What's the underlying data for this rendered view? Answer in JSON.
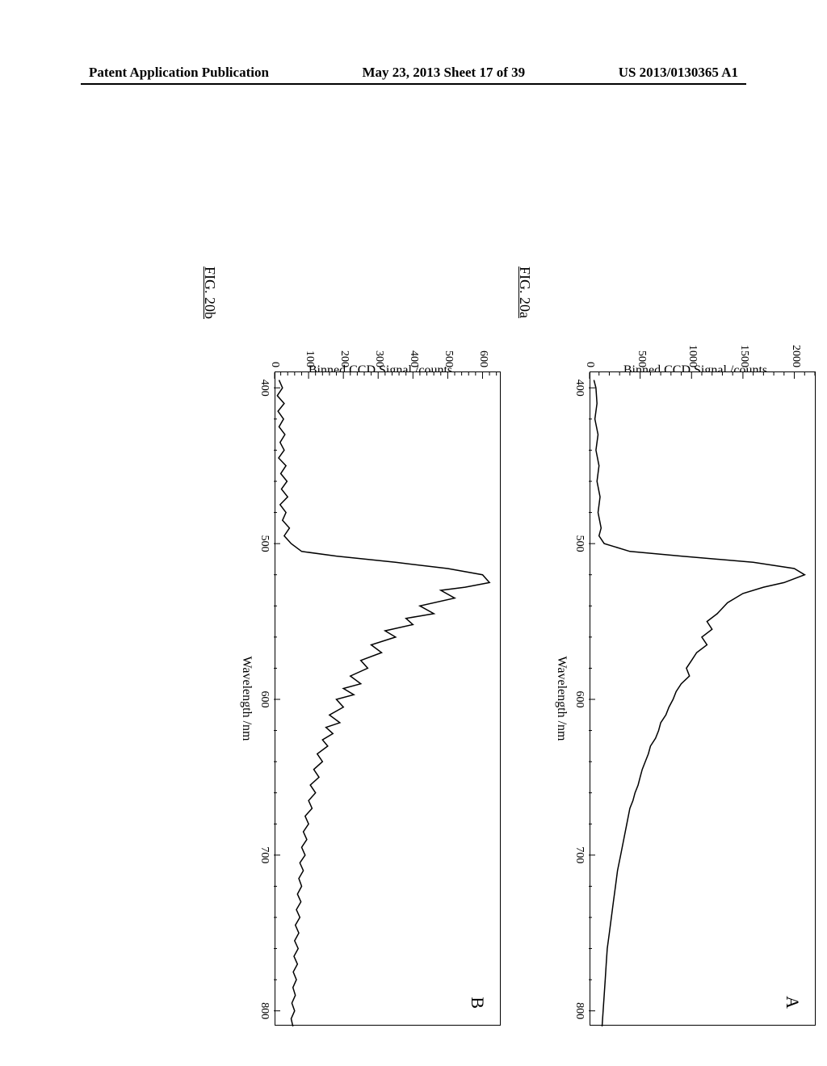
{
  "header": {
    "left": "Patent Application Publication",
    "center": "May 23, 2013  Sheet 17 of 39",
    "right": "US 2013/0130365 A1"
  },
  "chartA": {
    "type": "line",
    "panel_label": "A",
    "fig_label": "FIG.  20a",
    "x_axis_label": "Wavelength /nm",
    "y_axis_label": "Binned CCD Signal /counts",
    "xlim": [
      390,
      810
    ],
    "ylim": [
      0,
      2200
    ],
    "x_ticks": [
      400,
      500,
      600,
      700,
      800
    ],
    "y_ticks": [
      0,
      500,
      1000,
      1500,
      2000
    ],
    "line_color": "#000000",
    "background_color": "#ffffff",
    "peak_wavelength": 520,
    "peak_value": 2100,
    "data_points": [
      [
        395,
        50
      ],
      [
        400,
        70
      ],
      [
        410,
        80
      ],
      [
        420,
        60
      ],
      [
        430,
        90
      ],
      [
        440,
        70
      ],
      [
        450,
        100
      ],
      [
        460,
        80
      ],
      [
        470,
        110
      ],
      [
        480,
        90
      ],
      [
        490,
        120
      ],
      [
        495,
        100
      ],
      [
        500,
        150
      ],
      [
        505,
        400
      ],
      [
        508,
        900
      ],
      [
        512,
        1600
      ],
      [
        516,
        2000
      ],
      [
        520,
        2100
      ],
      [
        525,
        1900
      ],
      [
        528,
        1700
      ],
      [
        532,
        1500
      ],
      [
        538,
        1350
      ],
      [
        545,
        1250
      ],
      [
        550,
        1150
      ],
      [
        555,
        1200
      ],
      [
        560,
        1100
      ],
      [
        565,
        1150
      ],
      [
        570,
        1050
      ],
      [
        575,
        1000
      ],
      [
        580,
        950
      ],
      [
        585,
        980
      ],
      [
        590,
        900
      ],
      [
        595,
        850
      ],
      [
        600,
        820
      ],
      [
        605,
        780
      ],
      [
        610,
        750
      ],
      [
        615,
        700
      ],
      [
        620,
        680
      ],
      [
        625,
        650
      ],
      [
        630,
        600
      ],
      [
        635,
        580
      ],
      [
        640,
        550
      ],
      [
        645,
        520
      ],
      [
        650,
        500
      ],
      [
        655,
        480
      ],
      [
        660,
        450
      ],
      [
        665,
        430
      ],
      [
        670,
        400
      ],
      [
        680,
        370
      ],
      [
        690,
        340
      ],
      [
        700,
        310
      ],
      [
        710,
        280
      ],
      [
        720,
        260
      ],
      [
        730,
        240
      ],
      [
        740,
        220
      ],
      [
        750,
        200
      ],
      [
        760,
        180
      ],
      [
        770,
        170
      ],
      [
        780,
        160
      ],
      [
        790,
        150
      ],
      [
        800,
        140
      ],
      [
        810,
        130
      ]
    ]
  },
  "chartB": {
    "type": "line",
    "panel_label": "B",
    "fig_label": "FIG.  20b",
    "x_axis_label": "Wavelength /nm",
    "y_axis_label": "Binned CCD Signal /counts",
    "xlim": [
      390,
      810
    ],
    "ylim": [
      0,
      650
    ],
    "x_ticks": [
      400,
      500,
      600,
      700,
      800
    ],
    "y_ticks": [
      0,
      100,
      200,
      300,
      400,
      500,
      600
    ],
    "line_color": "#000000",
    "background_color": "#ffffff",
    "peak_wavelength": 525,
    "peak_value": 620,
    "data_points": [
      [
        395,
        15
      ],
      [
        400,
        25
      ],
      [
        405,
        10
      ],
      [
        410,
        30
      ],
      [
        415,
        12
      ],
      [
        420,
        28
      ],
      [
        425,
        15
      ],
      [
        430,
        32
      ],
      [
        435,
        18
      ],
      [
        440,
        30
      ],
      [
        445,
        14
      ],
      [
        450,
        35
      ],
      [
        455,
        20
      ],
      [
        460,
        38
      ],
      [
        465,
        22
      ],
      [
        470,
        40
      ],
      [
        475,
        18
      ],
      [
        480,
        35
      ],
      [
        485,
        25
      ],
      [
        490,
        45
      ],
      [
        495,
        30
      ],
      [
        500,
        50
      ],
      [
        505,
        80
      ],
      [
        508,
        180
      ],
      [
        512,
        350
      ],
      [
        516,
        500
      ],
      [
        520,
        600
      ],
      [
        525,
        620
      ],
      [
        528,
        550
      ],
      [
        530,
        480
      ],
      [
        535,
        520
      ],
      [
        540,
        420
      ],
      [
        545,
        460
      ],
      [
        548,
        380
      ],
      [
        552,
        400
      ],
      [
        556,
        320
      ],
      [
        560,
        350
      ],
      [
        565,
        280
      ],
      [
        570,
        310
      ],
      [
        575,
        250
      ],
      [
        580,
        270
      ],
      [
        585,
        220
      ],
      [
        590,
        250
      ],
      [
        593,
        200
      ],
      [
        597,
        230
      ],
      [
        600,
        180
      ],
      [
        605,
        200
      ],
      [
        610,
        160
      ],
      [
        615,
        190
      ],
      [
        618,
        150
      ],
      [
        622,
        170
      ],
      [
        626,
        140
      ],
      [
        630,
        155
      ],
      [
        635,
        125
      ],
      [
        640,
        140
      ],
      [
        645,
        115
      ],
      [
        650,
        130
      ],
      [
        655,
        105
      ],
      [
        660,
        120
      ],
      [
        665,
        100
      ],
      [
        670,
        110
      ],
      [
        675,
        90
      ],
      [
        680,
        100
      ],
      [
        685,
        85
      ],
      [
        690,
        95
      ],
      [
        695,
        80
      ],
      [
        700,
        90
      ],
      [
        705,
        75
      ],
      [
        710,
        85
      ],
      [
        715,
        72
      ],
      [
        720,
        80
      ],
      [
        725,
        68
      ],
      [
        730,
        78
      ],
      [
        735,
        65
      ],
      [
        740,
        75
      ],
      [
        745,
        62
      ],
      [
        750,
        72
      ],
      [
        755,
        60
      ],
      [
        760,
        70
      ],
      [
        765,
        58
      ],
      [
        770,
        68
      ],
      [
        775,
        56
      ],
      [
        780,
        65
      ],
      [
        785,
        55
      ],
      [
        790,
        62
      ],
      [
        795,
        52
      ],
      [
        800,
        60
      ],
      [
        805,
        50
      ],
      [
        810,
        55
      ]
    ]
  }
}
